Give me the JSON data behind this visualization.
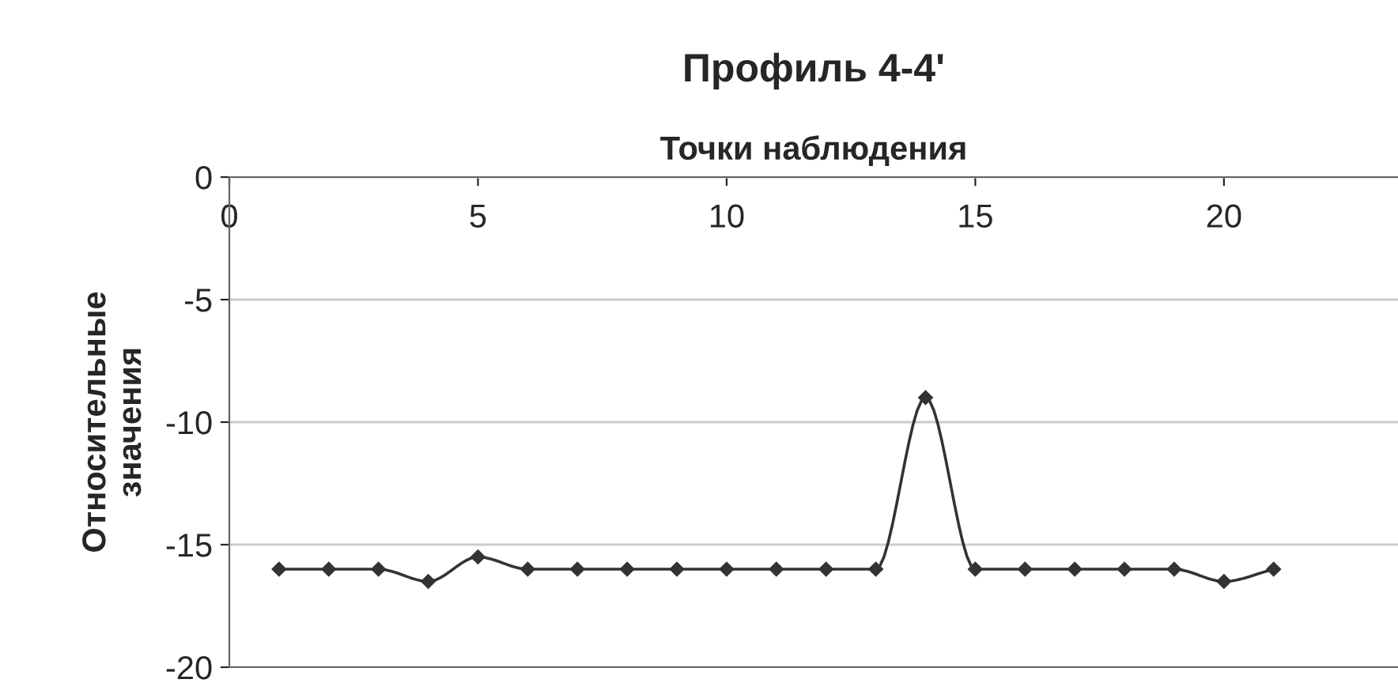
{
  "chart_data": {
    "type": "line",
    "title": "Профиль 4-4'",
    "xlabel": "Точки наблюдения",
    "ylabel": "Относительные\nзначения",
    "x": [
      1,
      2,
      3,
      4,
      5,
      6,
      7,
      8,
      9,
      10,
      11,
      12,
      13,
      14,
      15,
      16,
      17,
      18,
      19,
      20,
      21
    ],
    "series": [
      {
        "color": "#333333",
        "values": [
          -16,
          -16,
          -16,
          -16.5,
          -15.5,
          -16,
          -16,
          -16,
          -16,
          -16,
          -16,
          -16,
          -16,
          -9,
          -16,
          -16,
          -16,
          -16,
          -16,
          -16.5,
          -16
        ]
      }
    ],
    "xlim": [
      0,
      23.5
    ],
    "ylim": [
      -20,
      0
    ],
    "xticks": [
      0,
      5,
      10,
      15,
      20
    ],
    "yticks": [
      -20,
      -15,
      -10,
      -5,
      0
    ],
    "grid": "y",
    "marker": "diamond",
    "line_style": "solid"
  }
}
